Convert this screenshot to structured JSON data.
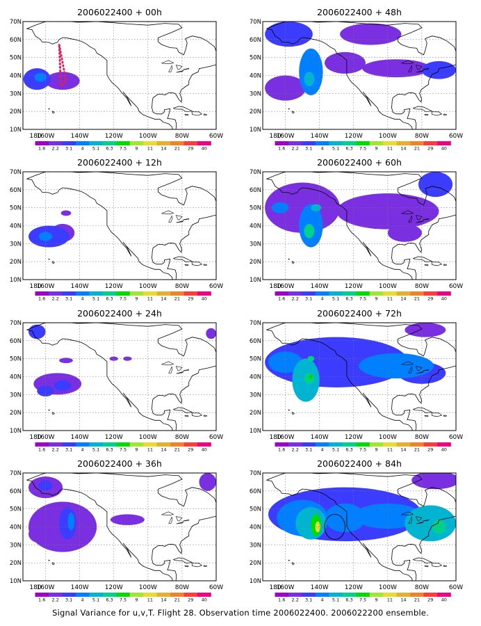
{
  "caption": "Signal Variance for u,v,T. Flight 28. Observation time 2006022400. 2006022200 ensemble.",
  "colorbar": {
    "labels": [
      "1.6",
      "2.2",
      "3.1",
      "4",
      "5.1",
      "6.3",
      "7.5",
      "9",
      "11",
      "14",
      "21",
      "29",
      "40"
    ],
    "colors": [
      "#a000c8",
      "#7a30e0",
      "#3c3cff",
      "#0080ff",
      "#00b4d2",
      "#00d28c",
      "#00dc00",
      "#a0e632",
      "#e6dc32",
      "#e6af2d",
      "#f08228",
      "#fa3c3c",
      "#f00082"
    ]
  },
  "chart_data": [
    {
      "type": "heatmap",
      "title": "2006022400 + 00h",
      "x_ticks": [
        "180",
        "160W",
        "140W",
        "120W",
        "100W",
        "80W",
        "60W"
      ],
      "y_ticks": [
        "10N",
        "20N",
        "30N",
        "40N",
        "50N",
        "60N",
        "70N"
      ],
      "xlim": [
        -170,
        -60
      ],
      "ylim": [
        10,
        70
      ],
      "blobs": [
        {
          "lon": -165,
          "lat": 38,
          "rx": 8,
          "ry": 6,
          "level": 2
        },
        {
          "lon": -150,
          "lat": 37,
          "rx": 10,
          "ry": 5,
          "level": 1
        },
        {
          "lon": -163,
          "lat": 39,
          "rx": 3.5,
          "ry": 2.5,
          "level": 3
        }
      ],
      "annotations": [
        {
          "shape": "dotted-triangle",
          "points": [
            [
              -152,
              57
            ],
            [
              -148,
              37
            ],
            [
              -151,
              34
            ]
          ],
          "color": "#e0205a"
        }
      ]
    },
    {
      "type": "heatmap",
      "title": "2006022400 + 48h",
      "x_ticks": [
        "180",
        "160W",
        "140W",
        "120W",
        "100W",
        "80W",
        "60W"
      ],
      "y_ticks": [
        "10N",
        "20N",
        "30N",
        "40N",
        "50N",
        "60N",
        "70N"
      ],
      "xlim": [
        -170,
        -60
      ],
      "ylim": [
        10,
        70
      ],
      "blobs": [
        {
          "lon": -158,
          "lat": 63,
          "rx": 14,
          "ry": 7,
          "level": 2
        },
        {
          "lon": -145,
          "lat": 42,
          "rx": 7,
          "ry": 13,
          "level": 3
        },
        {
          "lon": -146,
          "lat": 38,
          "rx": 3,
          "ry": 4,
          "level": 4
        },
        {
          "lon": -160,
          "lat": 33,
          "rx": 12,
          "ry": 7,
          "level": 1
        },
        {
          "lon": -125,
          "lat": 47,
          "rx": 12,
          "ry": 6,
          "level": 1
        },
        {
          "lon": -95,
          "lat": 44,
          "rx": 20,
          "ry": 5,
          "level": 1
        },
        {
          "lon": -70,
          "lat": 43,
          "rx": 10,
          "ry": 5,
          "level": 2
        },
        {
          "lon": -110,
          "lat": 63,
          "rx": 18,
          "ry": 6,
          "level": 1
        }
      ]
    },
    {
      "type": "heatmap",
      "title": "2006022400 + 12h",
      "x_ticks": [
        "180",
        "160W",
        "140W",
        "120W",
        "100W",
        "80W",
        "60W"
      ],
      "y_ticks": [
        "10N",
        "20N",
        "30N",
        "40N",
        "50N",
        "60N",
        "70N"
      ],
      "xlim": [
        -170,
        -60
      ],
      "ylim": [
        10,
        70
      ],
      "blobs": [
        {
          "lon": -158,
          "lat": 34,
          "rx": 12,
          "ry": 6,
          "level": 2
        },
        {
          "lon": -160,
          "lat": 34,
          "rx": 4,
          "ry": 2.5,
          "level": 3
        },
        {
          "lon": -150,
          "lat": 36,
          "rx": 7,
          "ry": 5,
          "level": 1
        },
        {
          "lon": -148,
          "lat": 47,
          "rx": 3,
          "ry": 1.5,
          "level": 1
        }
      ]
    },
    {
      "type": "heatmap",
      "title": "2006022400 + 60h",
      "x_ticks": [
        "180",
        "160W",
        "140W",
        "120W",
        "100W",
        "80W",
        "60W"
      ],
      "y_ticks": [
        "10N",
        "20N",
        "30N",
        "40N",
        "50N",
        "60N",
        "70N"
      ],
      "xlim": [
        -170,
        -60
      ],
      "ylim": [
        10,
        70
      ],
      "blobs": [
        {
          "lon": -150,
          "lat": 50,
          "rx": 22,
          "ry": 14,
          "level": 1
        },
        {
          "lon": -145,
          "lat": 40,
          "rx": 7,
          "ry": 12,
          "level": 3
        },
        {
          "lon": -146,
          "lat": 37,
          "rx": 3,
          "ry": 4,
          "level": 5
        },
        {
          "lon": -142,
          "lat": 50,
          "rx": 3,
          "ry": 2,
          "level": 4
        },
        {
          "lon": -163,
          "lat": 50,
          "rx": 5,
          "ry": 3,
          "level": 3
        },
        {
          "lon": -100,
          "lat": 48,
          "rx": 30,
          "ry": 10,
          "level": 1
        },
        {
          "lon": -72,
          "lat": 63,
          "rx": 10,
          "ry": 7,
          "level": 2
        },
        {
          "lon": -90,
          "lat": 36,
          "rx": 10,
          "ry": 5,
          "level": 1
        }
      ]
    },
    {
      "type": "heatmap",
      "title": "2006022400 + 24h",
      "x_ticks": [
        "180",
        "160W",
        "140W",
        "120W",
        "100W",
        "80W",
        "60W"
      ],
      "y_ticks": [
        "10N",
        "20N",
        "30N",
        "40N",
        "50N",
        "60N",
        "70N"
      ],
      "xlim": [
        -170,
        -60
      ],
      "ylim": [
        10,
        70
      ],
      "blobs": [
        {
          "lon": -153,
          "lat": 36,
          "rx": 14,
          "ry": 6,
          "level": 1
        },
        {
          "lon": -160,
          "lat": 32,
          "rx": 5,
          "ry": 3,
          "level": 2
        },
        {
          "lon": -150,
          "lat": 35,
          "rx": 5,
          "ry": 3,
          "level": 2
        },
        {
          "lon": -148,
          "lat": 49,
          "rx": 4,
          "ry": 1.5,
          "level": 1
        },
        {
          "lon": -165,
          "lat": 65,
          "rx": 5,
          "ry": 4,
          "level": 2
        },
        {
          "lon": -120,
          "lat": 50,
          "rx": 2.5,
          "ry": 1.2,
          "level": 1
        },
        {
          "lon": -112,
          "lat": 50,
          "rx": 2.5,
          "ry": 1.2,
          "level": 1
        },
        {
          "lon": -63,
          "lat": 64,
          "rx": 3,
          "ry": 3,
          "level": 1
        }
      ]
    },
    {
      "type": "heatmap",
      "title": "2006022400 + 72h",
      "x_ticks": [
        "180",
        "160W",
        "140W",
        "120W",
        "100W",
        "80W",
        "60W"
      ],
      "y_ticks": [
        "10N",
        "20N",
        "30N",
        "40N",
        "50N",
        "60N",
        "70N"
      ],
      "xlim": [
        -170,
        -60
      ],
      "ylim": [
        10,
        70
      ],
      "blobs": [
        {
          "lon": -130,
          "lat": 48,
          "rx": 42,
          "ry": 14,
          "level": 2
        },
        {
          "lon": -160,
          "lat": 48,
          "rx": 10,
          "ry": 6,
          "level": 3
        },
        {
          "lon": -148,
          "lat": 38,
          "rx": 8,
          "ry": 12,
          "level": 4
        },
        {
          "lon": -146,
          "lat": 39,
          "rx": 3,
          "ry": 3,
          "level": 5
        },
        {
          "lon": -145,
          "lat": 40,
          "rx": 1.2,
          "ry": 1.5,
          "level": 6
        },
        {
          "lon": -145,
          "lat": 50,
          "rx": 2,
          "ry": 1.5,
          "level": 5
        },
        {
          "lon": -95,
          "lat": 46,
          "rx": 22,
          "ry": 7,
          "level": 3
        },
        {
          "lon": -80,
          "lat": 42,
          "rx": 14,
          "ry": 6,
          "level": 2
        },
        {
          "lon": -78,
          "lat": 66,
          "rx": 12,
          "ry": 4,
          "level": 1
        }
      ]
    },
    {
      "type": "heatmap",
      "title": "2006022400 + 36h",
      "x_ticks": [
        "180",
        "160W",
        "140W",
        "120W",
        "100W",
        "80W",
        "60W"
      ],
      "y_ticks": [
        "10N",
        "20N",
        "30N",
        "40N",
        "50N",
        "60N",
        "70N"
      ],
      "xlim": [
        -170,
        -60
      ],
      "ylim": [
        10,
        70
      ],
      "blobs": [
        {
          "lon": -150,
          "lat": 40,
          "rx": 20,
          "ry": 14,
          "level": 1
        },
        {
          "lon": -147,
          "lat": 42,
          "rx": 5,
          "ry": 9,
          "level": 2
        },
        {
          "lon": -145,
          "lat": 43,
          "rx": 2,
          "ry": 5,
          "level": 3
        },
        {
          "lon": -163,
          "lat": 36,
          "rx": 7,
          "ry": 5,
          "level": 1
        },
        {
          "lon": -160,
          "lat": 62,
          "rx": 10,
          "ry": 6,
          "level": 1
        },
        {
          "lon": -160,
          "lat": 63,
          "rx": 4,
          "ry": 3,
          "level": 2
        },
        {
          "lon": -112,
          "lat": 44,
          "rx": 10,
          "ry": 3,
          "level": 1
        },
        {
          "lon": -65,
          "lat": 65,
          "rx": 5,
          "ry": 5,
          "level": 1
        }
      ]
    },
    {
      "type": "heatmap",
      "title": "2006022400 + 84h",
      "x_ticks": [
        "180",
        "160W",
        "140W",
        "120W",
        "100W",
        "80W",
        "60W"
      ],
      "y_ticks": [
        "10N",
        "20N",
        "30N",
        "40N",
        "50N",
        "60N",
        "70N"
      ],
      "xlim": [
        -170,
        -60
      ],
      "ylim": [
        10,
        70
      ],
      "blobs": [
        {
          "lon": -125,
          "lat": 47,
          "rx": 45,
          "ry": 15,
          "level": 2
        },
        {
          "lon": -150,
          "lat": 45,
          "rx": 15,
          "ry": 10,
          "level": 3
        },
        {
          "lon": -145,
          "lat": 42,
          "rx": 9,
          "ry": 9,
          "level": 4
        },
        {
          "lon": -142,
          "lat": 41,
          "rx": 3,
          "ry": 6,
          "level": 6
        },
        {
          "lon": -141,
          "lat": 40,
          "rx": 1.5,
          "ry": 3,
          "level": 8
        },
        {
          "lon": -125,
          "lat": 45,
          "rx": 12,
          "ry": 8,
          "level": 3
        },
        {
          "lon": -100,
          "lat": 46,
          "rx": 20,
          "ry": 7,
          "level": 3
        },
        {
          "lon": -75,
          "lat": 42,
          "rx": 15,
          "ry": 10,
          "level": 4
        },
        {
          "lon": -70,
          "lat": 40,
          "rx": 4,
          "ry": 4,
          "level": 5
        },
        {
          "lon": -72,
          "lat": 66,
          "rx": 14,
          "ry": 5,
          "level": 1
        }
      ],
      "annotations": [
        {
          "shape": "circle",
          "center": [
            -131,
            40
          ],
          "radius_deg": [
            6,
            7
          ],
          "color": "#000000"
        }
      ]
    }
  ]
}
